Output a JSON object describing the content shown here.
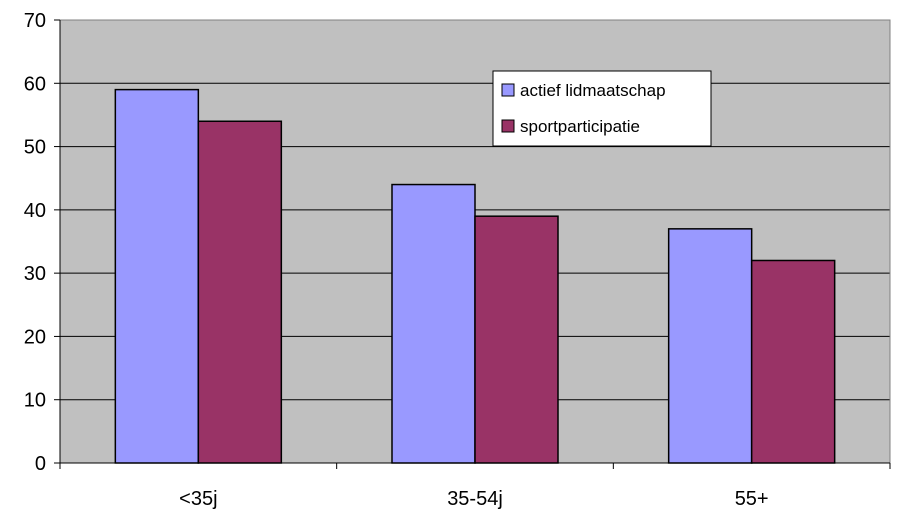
{
  "chart_data": {
    "type": "bar",
    "title": "",
    "xlabel": "",
    "ylabel": "",
    "categories": [
      "<35j",
      "35-54j",
      "55+"
    ],
    "series": [
      {
        "name": "actief lidmaatschap",
        "values": [
          59,
          44,
          37
        ],
        "color": "#9999ff"
      },
      {
        "name": "sportparticipatie",
        "values": [
          54,
          39,
          32
        ],
        "color": "#993366"
      }
    ],
    "ylim": [
      0,
      70
    ],
    "yticks": [
      0,
      10,
      20,
      30,
      40,
      50,
      60,
      70
    ],
    "grid": true,
    "plot_background": "#c0c0c0",
    "legend_position": "top-right"
  }
}
